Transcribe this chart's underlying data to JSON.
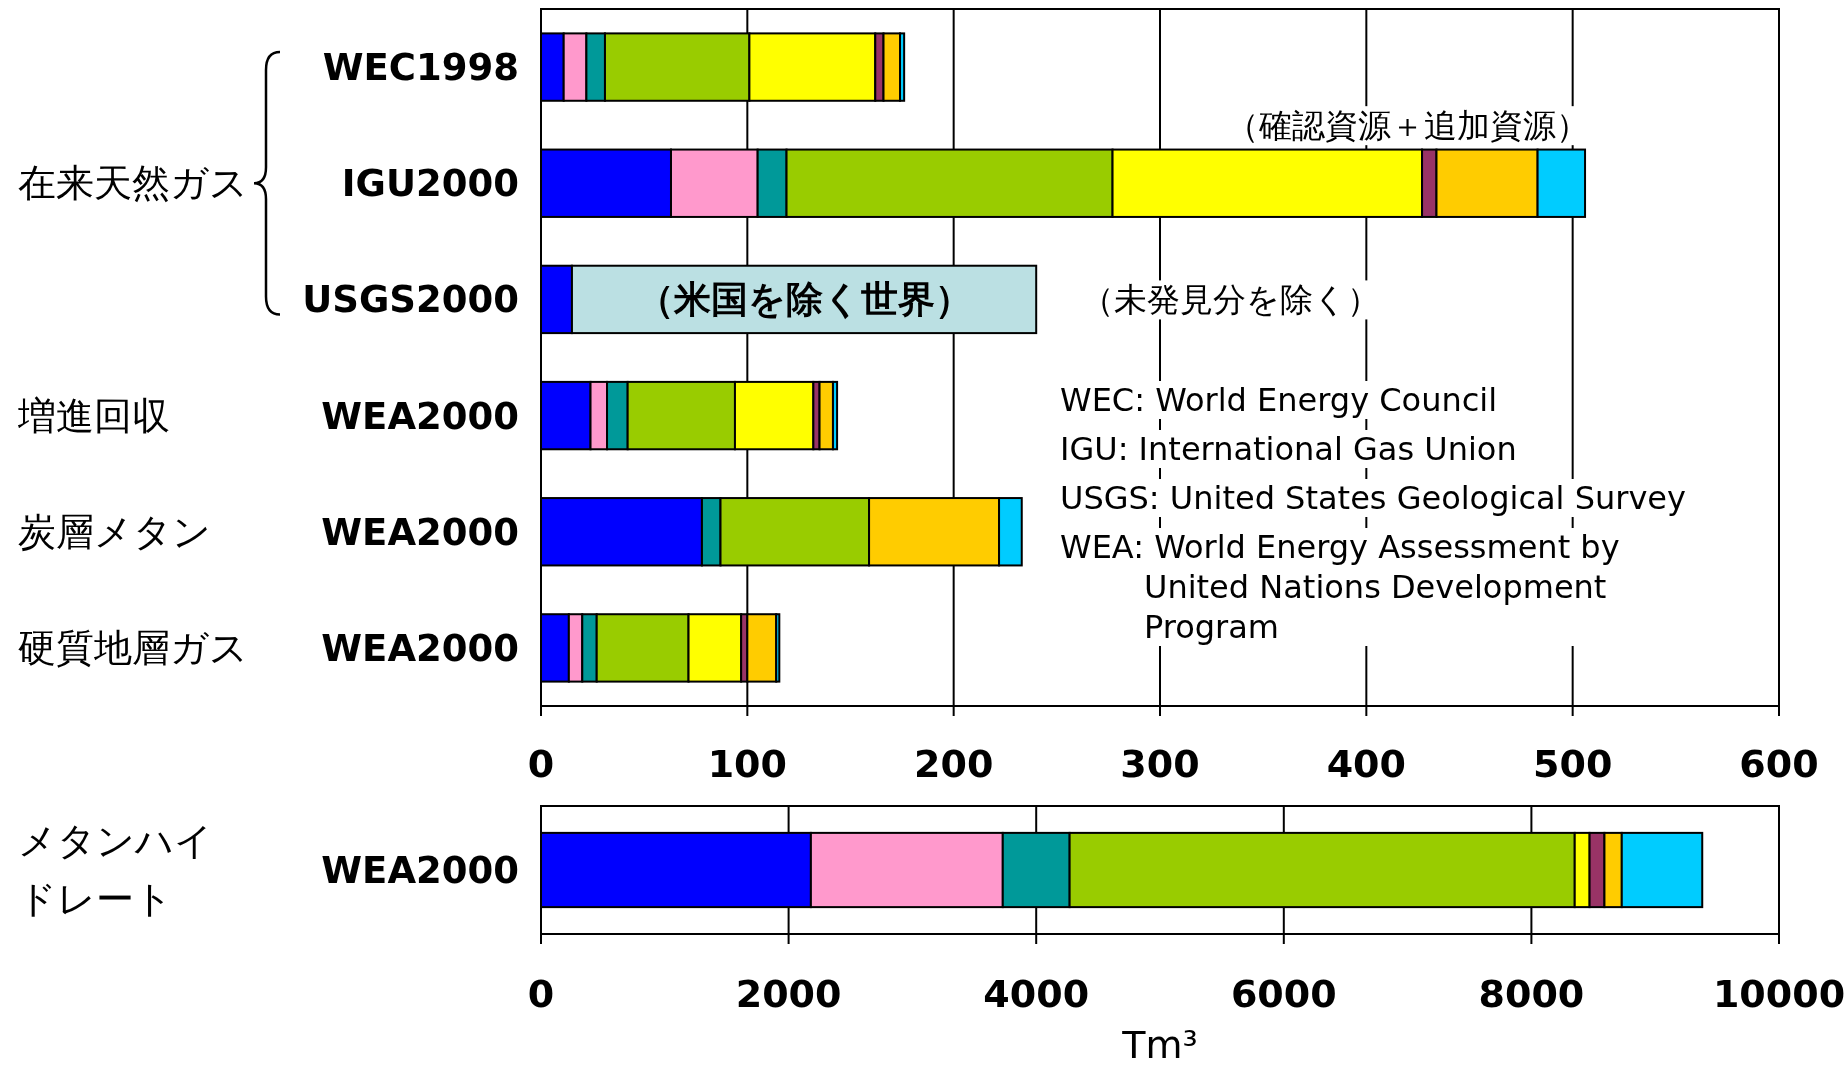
{
  "chart_data": [
    {
      "type": "bar",
      "orientation": "horizontal",
      "stacked": true,
      "grid": "x",
      "categories": [
        "WEC1998",
        "IGU2000",
        "USGS2000",
        "WEA2000",
        "WEA2000",
        "WEA2000"
      ],
      "xlim": [
        0,
        600
      ],
      "xticks": [
        0,
        100,
        200,
        300,
        400,
        500,
        600
      ],
      "series": [
        {
          "color": "#0000ff",
          "values": [
            11,
            63,
            15,
            24,
            78,
            13.5
          ]
        },
        {
          "color": "#ff99cc",
          "values": [
            11,
            42,
            null,
            8,
            null,
            6.5
          ]
        },
        {
          "color": "#009999",
          "values": [
            9,
            14,
            null,
            10,
            9,
            7
          ]
        },
        {
          "color": "#99cc00",
          "values": [
            70,
            158,
            null,
            52,
            72,
            44.5
          ]
        },
        {
          "color": "#ffff00",
          "values": [
            61,
            150,
            null,
            38,
            null,
            25.5
          ]
        },
        {
          "color": "#993366",
          "values": [
            4,
            7,
            null,
            3,
            null,
            3
          ]
        },
        {
          "color": "#ffcc00",
          "values": [
            8,
            49,
            null,
            6.5,
            63,
            14
          ]
        },
        {
          "color": "#00ccff",
          "values": [
            2,
            23,
            null,
            2,
            11,
            1.5
          ]
        },
        {
          "color": "#bbe0e3",
          "values": [
            null,
            null,
            225,
            null,
            null,
            null
          ],
          "value_labels": [
            null,
            null,
            "（米国を除く世界）",
            null,
            null,
            null
          ]
        }
      ],
      "annotations": [
        "在来天然ガス",
        "増進回収",
        "炭層メタン",
        "硬質地層ガス",
        "（確認資源＋追加資源）",
        "（未発見分を除く）",
        "WEC: World Energy Council",
        "IGU: International Gas Union",
        "USGS: United States Geological Survey",
        "WEA: World Energy Assessment by United Nations Development Program"
      ]
    },
    {
      "type": "bar",
      "orientation": "horizontal",
      "stacked": true,
      "grid": "x",
      "categories": [
        "WEA2000"
      ],
      "xlim": [
        0,
        10000
      ],
      "xticks": [
        0,
        2000,
        4000,
        6000,
        8000,
        10000
      ],
      "xlabel": "Tm³",
      "series": [
        {
          "color": "#0000ff",
          "values": [
            2180
          ]
        },
        {
          "color": "#ff99cc",
          "values": [
            1550
          ]
        },
        {
          "color": "#009999",
          "values": [
            540
          ]
        },
        {
          "color": "#99cc00",
          "values": [
            4080
          ]
        },
        {
          "color": "#ffff00",
          "values": [
            120
          ]
        },
        {
          "color": "#993366",
          "values": [
            120
          ]
        },
        {
          "color": "#ffcc00",
          "values": [
            140
          ]
        },
        {
          "color": "#00ccff",
          "values": [
            650
          ]
        }
      ],
      "annotations": [
        "メタンハイドレート"
      ]
    }
  ]
}
